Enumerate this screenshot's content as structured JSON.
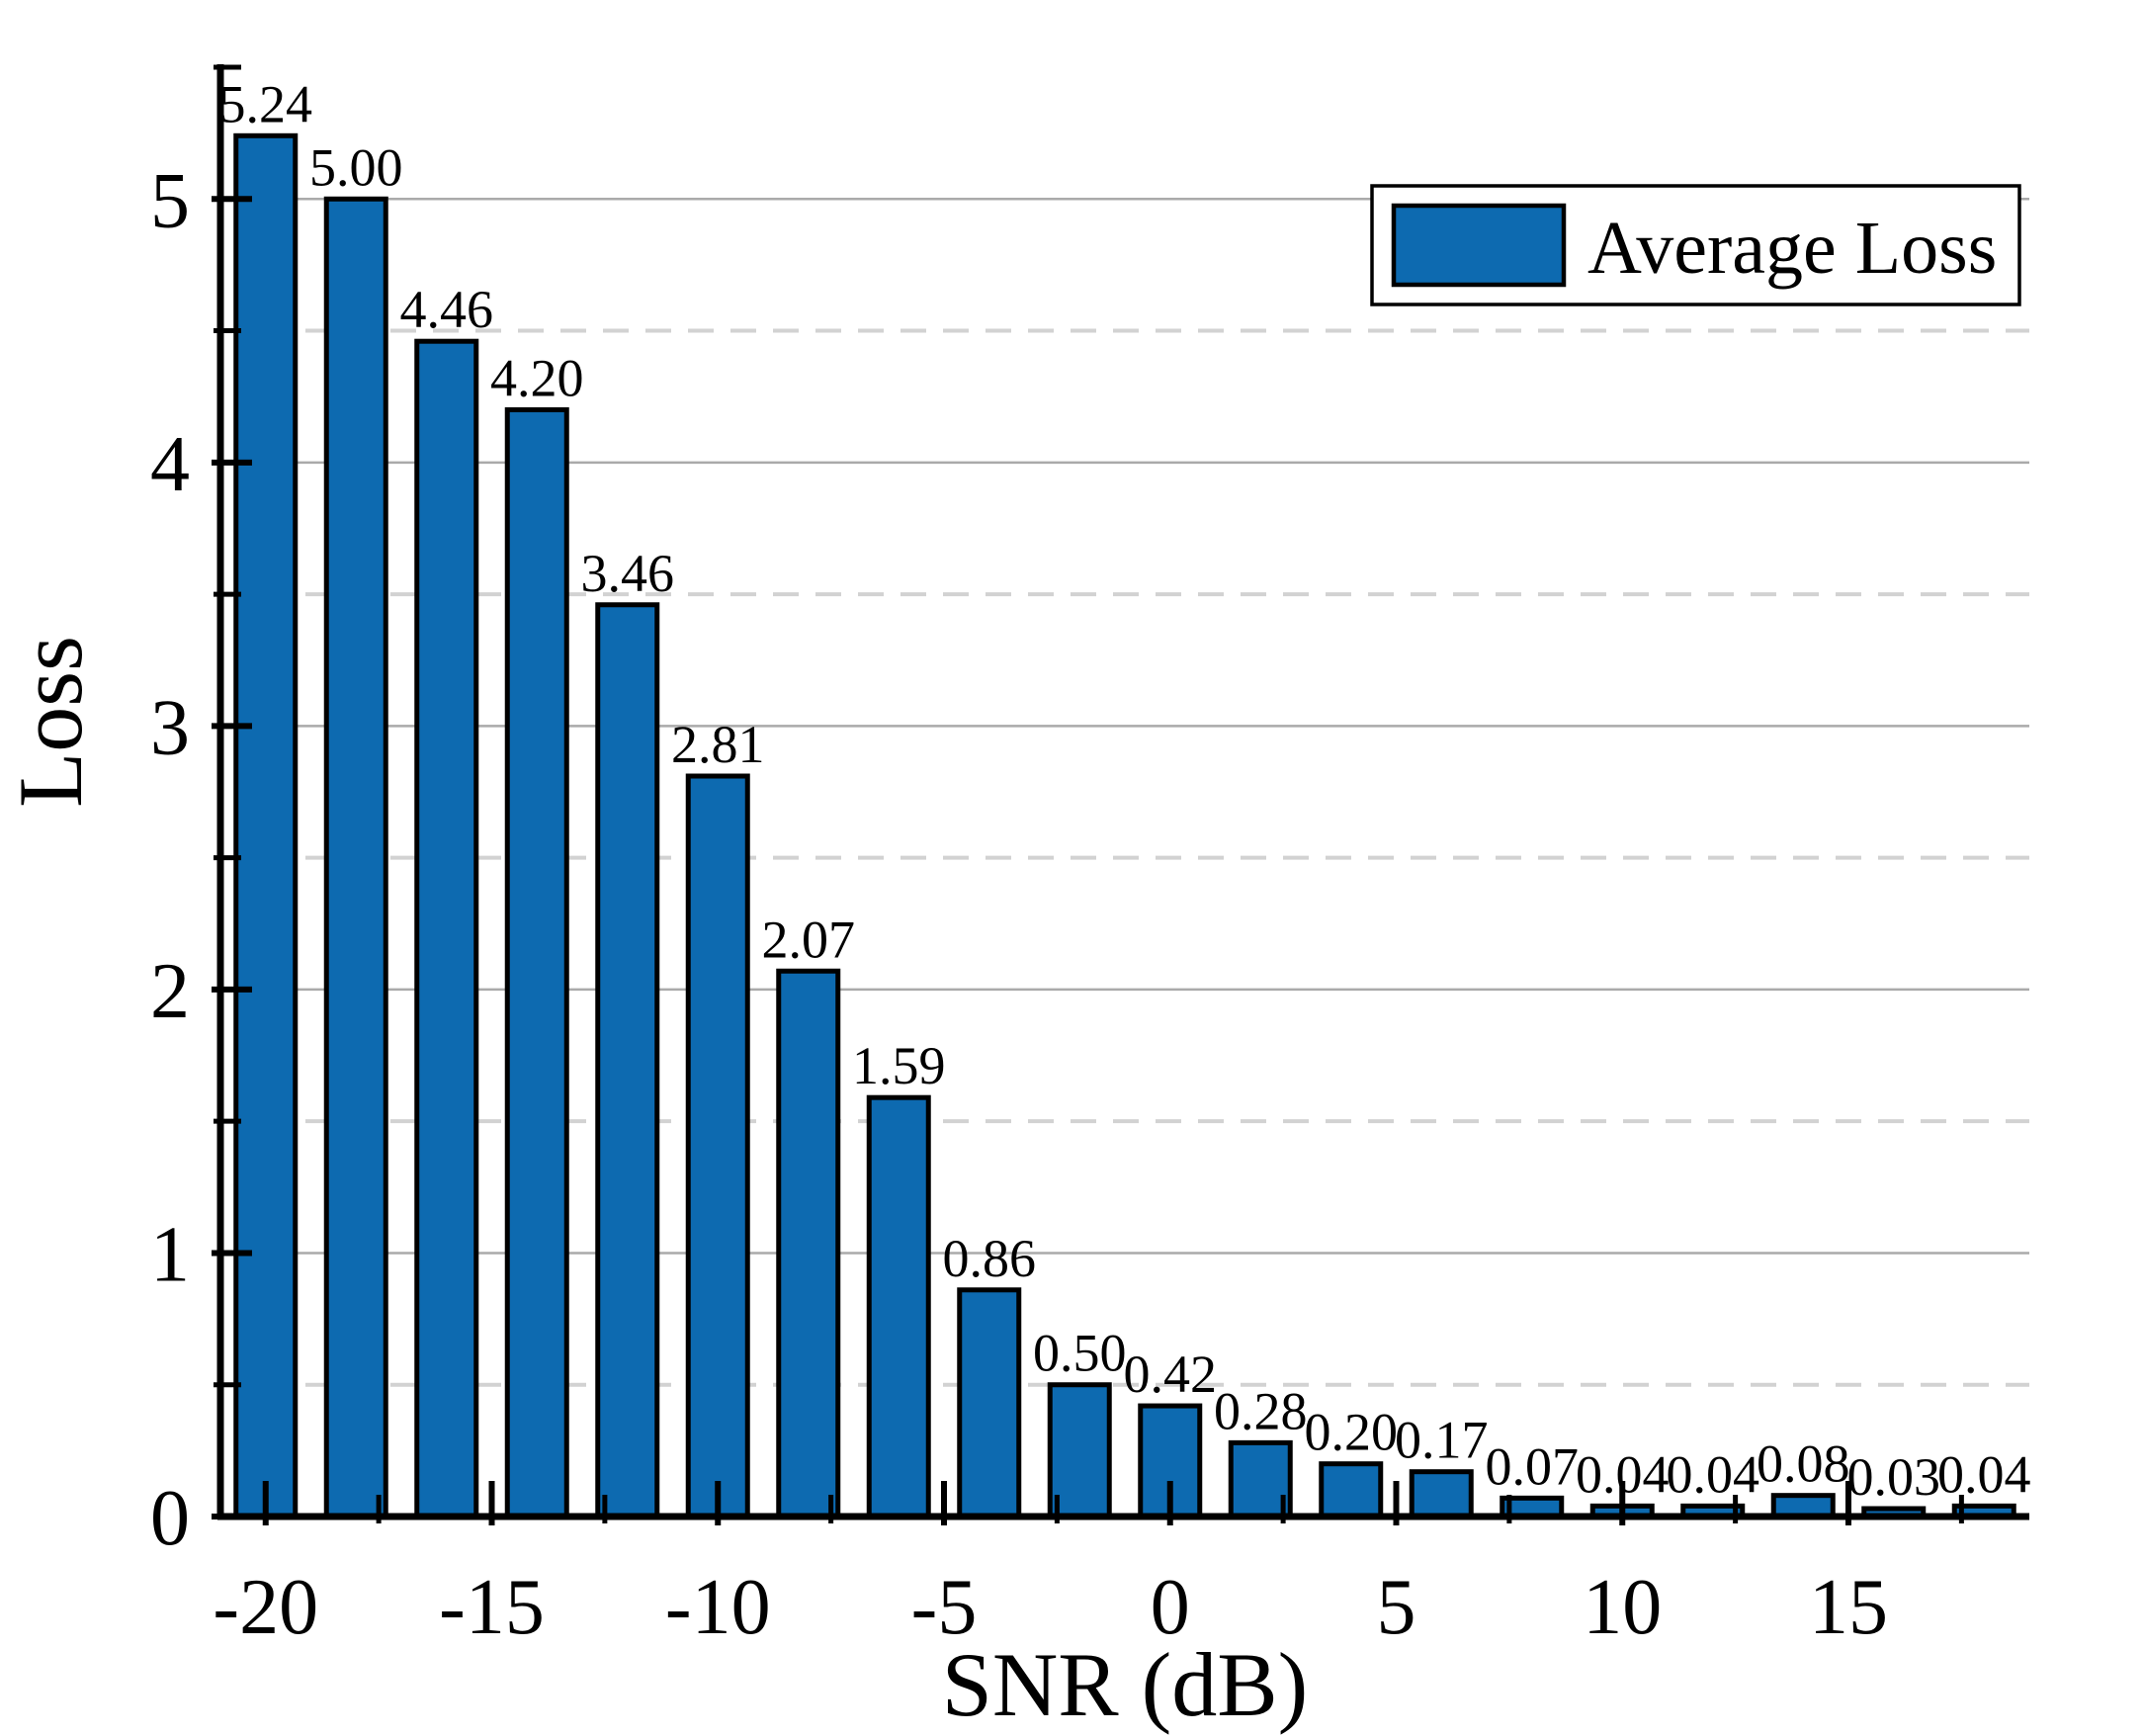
{
  "chart_data": {
    "type": "bar",
    "title": "",
    "xlabel": "SNR (dB)",
    "ylabel": "Loss",
    "legend": {
      "label": "Average Loss",
      "position": "upper right"
    },
    "x": [
      -20,
      -18,
      -16,
      -14,
      -12,
      -10,
      -8,
      -6,
      -4,
      -2,
      0,
      2,
      4,
      6,
      8,
      10,
      12,
      14,
      16,
      18
    ],
    "values": [
      5.24,
      5.0,
      4.46,
      4.2,
      3.46,
      2.81,
      2.07,
      1.59,
      0.86,
      0.5,
      0.42,
      0.28,
      0.2,
      0.17,
      0.07,
      0.04,
      0.04,
      0.08,
      0.03,
      0.04
    ],
    "bar_labels": [
      "5.24",
      "5.00",
      "4.46",
      "4.20",
      "3.46",
      "2.81",
      "2.07",
      "1.59",
      "0.86",
      "0.50",
      "0.42",
      "0.28",
      "0.20",
      "0.17",
      "0.07",
      "0.04",
      "0.04",
      "0.08",
      "0.03",
      "0.04"
    ],
    "xlim": [
      -21,
      19
    ],
    "ylim": [
      0,
      5.5
    ],
    "x_major_ticks": [
      -20,
      -15,
      -10,
      -5,
      0,
      5,
      10,
      15
    ],
    "x_major_tick_labels": [
      "-20",
      "-15",
      "-10",
      "-5",
      "0",
      "5",
      "10",
      "15"
    ],
    "x_minor_ticks": [
      -17.5,
      -12.5,
      -7.5,
      -2.5,
      2.5,
      7.5,
      12.5,
      17.5
    ],
    "y_major_ticks": [
      0,
      1,
      2,
      3,
      4,
      5
    ],
    "y_major_tick_labels": [
      "0",
      "1",
      "2",
      "3",
      "4",
      "5"
    ],
    "y_minor_ticks": [
      0.5,
      1.5,
      2.5,
      3.5,
      4.5,
      5.5
    ],
    "y_major_gridlines": [
      1,
      2,
      3,
      4,
      5
    ],
    "y_minor_gridlines": [
      0.5,
      1.5,
      2.5,
      3.5,
      4.5
    ],
    "grid": {
      "major_style": "solid",
      "minor_style": "dashed",
      "legend_position": "upper right"
    },
    "colors": {
      "bar_fill": "#0d6ab0",
      "bar_edge": "#000000",
      "grid_major": "#aaaaaa",
      "grid_minor": "#d2d2d2",
      "axis": "#000000",
      "text": "#000000",
      "legend_bg": "#ffffff",
      "legend_border": "#000000"
    }
  }
}
